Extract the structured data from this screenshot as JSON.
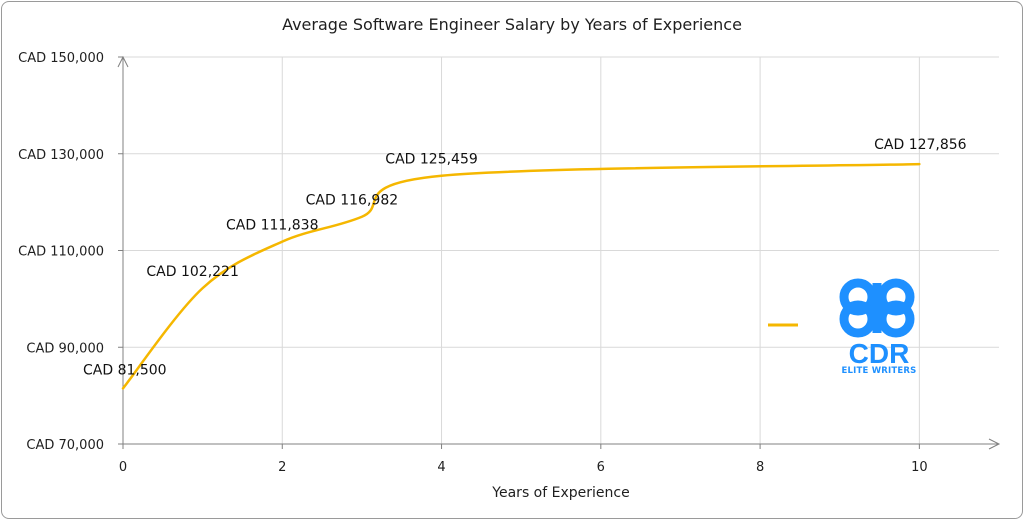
{
  "chart_data": {
    "type": "line",
    "title": "Average Software Engineer Salary by Years of Experience",
    "xlabel": "Years of Experience",
    "ylabel": "",
    "xlim": [
      0,
      11
    ],
    "ylim": [
      70000,
      150000
    ],
    "x_ticks": [
      "0",
      "2",
      "4",
      "6",
      "8",
      "10"
    ],
    "y_ticks": [
      "CAD 70,000",
      "CAD 90,000",
      "CAD 110,000",
      "CAD 130,000",
      "CAD 150,000"
    ],
    "grid": "vertical and horizontal",
    "legend": "right",
    "series": [
      {
        "color": "#f5b700",
        "x": [
          0,
          1,
          2,
          3,
          4,
          10
        ],
        "values": [
          81500,
          102221,
          111838,
          116982,
          125459,
          127856
        ],
        "labels": [
          "CAD 81,500",
          "CAD 102,221",
          "CAD 111,838",
          "CAD 116,982",
          "CAD 125,459",
          "CAD 127,856"
        ]
      }
    ]
  },
  "logo": {
    "text": "CDR",
    "subtext": "ELITE WRITERS",
    "color": "#1e90ff"
  }
}
